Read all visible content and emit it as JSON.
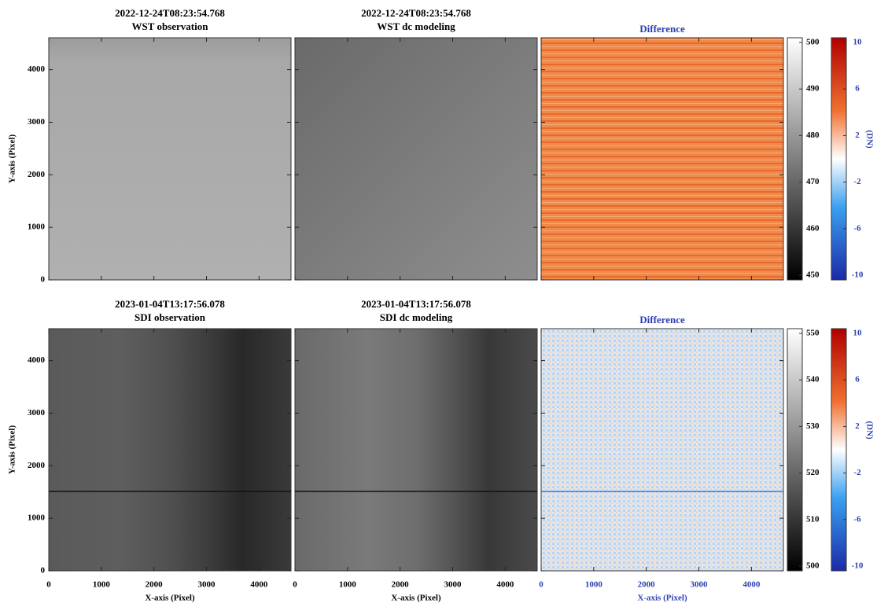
{
  "rows": [
    {
      "panels": [
        {
          "title": [
            "2022-12-24T08:23:54.768",
            "WST observation"
          ]
        },
        {
          "title": [
            "2022-12-24T08:23:54.768",
            "WST dc modeling"
          ]
        },
        {
          "title": [
            "Difference"
          ]
        }
      ],
      "gray_ticks": [
        450,
        460,
        470,
        480,
        490,
        500
      ],
      "diff_ticks": [
        -10,
        -6,
        -2,
        2,
        6,
        10
      ],
      "diff_label": "(DN)",
      "y_label": "Y-axis (Pixel)"
    },
    {
      "panels": [
        {
          "title": [
            "2023-01-04T13:17:56.078",
            "SDI observation"
          ]
        },
        {
          "title": [
            "2023-01-04T13:17:56.078",
            "SDI dc modeling"
          ]
        },
        {
          "title": [
            "Difference"
          ]
        }
      ],
      "gray_ticks": [
        500,
        510,
        520,
        530,
        540,
        550
      ],
      "diff_ticks": [
        -10,
        -6,
        -2,
        2,
        6,
        10
      ],
      "diff_label": "(DN)",
      "y_label": "Y-axis (Pixel)",
      "x_label": "X-axis (Pixel)"
    }
  ],
  "xticks": [
    0,
    1000,
    2000,
    3000,
    4000
  ],
  "yticks": [
    0,
    1000,
    2000,
    3000,
    4000
  ],
  "xlim": [
    0,
    4608
  ],
  "ylim": [
    0,
    4608
  ]
}
